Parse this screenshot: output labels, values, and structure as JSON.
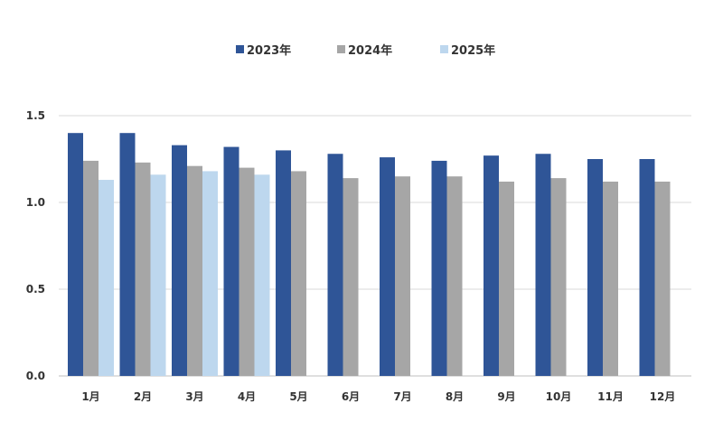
{
  "chart_data": {
    "type": "bar",
    "title": "",
    "xlabel": "",
    "ylabel": "",
    "categories": [
      "1月",
      "2月",
      "3月",
      "4月",
      "5月",
      "6月",
      "7月",
      "8月",
      "9月",
      "10月",
      "11月",
      "12月"
    ],
    "series": [
      {
        "name": "2023年",
        "color": "#2f5597",
        "values": [
          1.4,
          1.4,
          1.33,
          1.32,
          1.3,
          1.28,
          1.26,
          1.24,
          1.27,
          1.28,
          1.25,
          1.25
        ]
      },
      {
        "name": "2024年",
        "color": "#a6a6a6",
        "values": [
          1.24,
          1.23,
          1.21,
          1.2,
          1.18,
          1.14,
          1.15,
          1.15,
          1.12,
          1.14,
          1.12,
          1.12
        ]
      },
      {
        "name": "2025年",
        "color": "#bdd7ee",
        "values": [
          1.13,
          1.16,
          1.18,
          1.16,
          null,
          null,
          null,
          null,
          null,
          null,
          null,
          null
        ]
      }
    ],
    "ylim": [
      0,
      1.5
    ],
    "yticks": [
      "0.0",
      "0.5",
      "1.0",
      "1.5"
    ],
    "grid": true,
    "legend_position": "top-center"
  }
}
